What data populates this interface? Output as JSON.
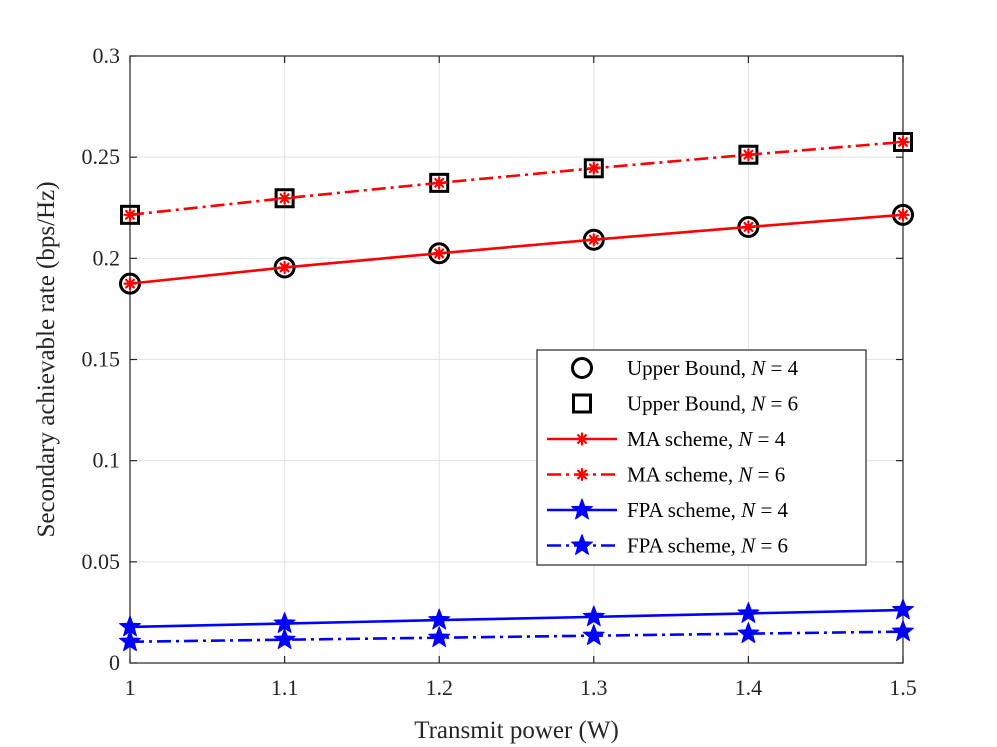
{
  "chart_data": {
    "type": "line",
    "title": "",
    "xlabel": "Transmit power (W)",
    "ylabel": "Secondary achievable rate (bps/Hz)",
    "xlim": [
      1,
      1.5
    ],
    "ylim": [
      0,
      0.3
    ],
    "grid": true,
    "legend_position": "center-right",
    "xticks": [
      1,
      1.1,
      1.2,
      1.3,
      1.4,
      1.5
    ],
    "xtick_labels": [
      "1",
      "1.1",
      "1.2",
      "1.3",
      "1.4",
      "1.5"
    ],
    "yticks": [
      0,
      0.05,
      0.1,
      0.15,
      0.2,
      0.25,
      0.3
    ],
    "ytick_labels": [
      "0",
      "0.05",
      "0.1",
      "0.15",
      "0.2",
      "0.25",
      "0.3"
    ],
    "x": [
      1,
      1.1,
      1.2,
      1.3,
      1.4,
      1.5
    ],
    "series": [
      {
        "name": "Upper Bound, ",
        "n_label": "N = 4",
        "color": "#000000",
        "line": "none",
        "marker": "circle",
        "values": [
          0.1875,
          0.1955,
          0.2025,
          0.2092,
          0.2155,
          0.2215
        ]
      },
      {
        "name": "Upper Bound, ",
        "n_label": "N = 6",
        "color": "#000000",
        "line": "none",
        "marker": "square",
        "values": [
          0.2215,
          0.2297,
          0.2373,
          0.2445,
          0.2512,
          0.2575
        ]
      },
      {
        "name": "MA scheme, ",
        "n_label": "N = 4",
        "color": "#ff0000",
        "line": "solid",
        "marker": "asterisk",
        "values": [
          0.1875,
          0.1955,
          0.2025,
          0.2092,
          0.2155,
          0.2215
        ]
      },
      {
        "name": "MA scheme, ",
        "n_label": "N = 6",
        "color": "#ff0000",
        "line": "dashdot",
        "marker": "asterisk",
        "values": [
          0.2215,
          0.2297,
          0.2373,
          0.2445,
          0.2512,
          0.2575
        ]
      },
      {
        "name": "FPA scheme, ",
        "n_label": "N = 4",
        "color": "#0000ff",
        "line": "solid",
        "marker": "star",
        "values": [
          0.0178,
          0.0195,
          0.0212,
          0.0228,
          0.0245,
          0.0262
        ]
      },
      {
        "name": "FPA scheme, ",
        "n_label": "N = 6",
        "color": "#0000ff",
        "line": "dashdot",
        "marker": "star",
        "values": [
          0.0105,
          0.0115,
          0.0125,
          0.0135,
          0.0145,
          0.0155
        ]
      }
    ]
  }
}
